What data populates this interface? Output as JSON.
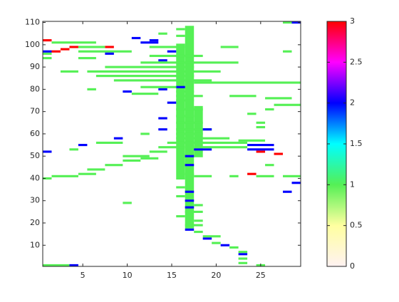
{
  "chart_data": {
    "type": "heatmap",
    "x_start": [
      17,
      16,
      18,
      1,
      4,
      25,
      23,
      23,
      23,
      23,
      22,
      21,
      20,
      19,
      19,
      18,
      17,
      17,
      18,
      16,
      17,
      17,
      18,
      10,
      17,
      16,
      17,
      28,
      16,
      29,
      1,
      2,
      18,
      22,
      25,
      28,
      24,
      5,
      17,
      6,
      8,
      17,
      26,
      10,
      17,
      12,
      10,
      27,
      1,
      13,
      25,
      4,
      18,
      24,
      14,
      18,
      24,
      5,
      7,
      15,
      23,
      9,
      16,
      12,
      16,
      16,
      19,
      14,
      25,
      16,
      25,
      14,
      16,
      24,
      16,
      26,
      27,
      15,
      16,
      16,
      26,
      22,
      11,
      16,
      10,
      14,
      16,
      6,
      12,
      18,
      9,
      7,
      3,
      6,
      8,
      14,
      12,
      1,
      5,
      13,
      1,
      1,
      2,
      5,
      8,
      15,
      28,
      3,
      4,
      8,
      5,
      13,
      21,
      12,
      1,
      2,
      11,
      13,
      16,
      14,
      16,
      29,
      28
    ],
    "x_end": [
      17,
      16,
      18,
      3,
      4,
      25,
      23,
      23,
      23,
      23,
      22,
      21,
      20,
      19,
      20,
      18,
      17,
      18,
      18,
      16,
      18,
      17,
      18,
      10,
      17,
      16,
      17,
      28,
      16,
      29,
      1,
      4,
      19,
      22,
      26,
      29,
      24,
      6,
      17,
      7,
      9,
      17,
      26,
      11,
      17,
      13,
      12,
      27,
      1,
      14,
      25,
      4,
      19,
      26,
      16,
      23,
      26,
      5,
      9,
      23,
      25,
      9,
      21,
      12,
      18,
      19,
      19,
      14,
      25,
      18,
      25,
      14,
      17,
      24,
      18,
      26,
      29,
      15,
      17,
      18,
      28,
      24,
      13,
      17,
      10,
      14,
      16,
      6,
      15,
      29,
      19,
      17,
      4,
      20,
      17,
      14,
      22,
      1,
      6,
      18,
      1,
      1,
      2,
      10,
      8,
      15,
      28,
      3,
      4,
      8,
      7,
      16,
      22,
      13,
      1,
      6,
      11,
      13,
      16,
      14,
      16,
      29,
      28
    ],
    "y_start": [
      18,
      40,
      50,
      1,
      1,
      1,
      2,
      4,
      6,
      7,
      9,
      10,
      11,
      13,
      14,
      16,
      17,
      19,
      21,
      23,
      25,
      27,
      28,
      29,
      30,
      32,
      34,
      34,
      36,
      38,
      40,
      41,
      41,
      41,
      41,
      41,
      42,
      42,
      42,
      44,
      46,
      46,
      46,
      48,
      50,
      49,
      50,
      51,
      52,
      52,
      52,
      53,
      53,
      53,
      54,
      54,
      55,
      55,
      56,
      56,
      57,
      58,
      58,
      60,
      60,
      62,
      62,
      62,
      63,
      65,
      65,
      67,
      68,
      69,
      71,
      71,
      73,
      74,
      75,
      77,
      76,
      77,
      78,
      79,
      79,
      80,
      81,
      80,
      81,
      83,
      84,
      86,
      88,
      88,
      90,
      93,
      92,
      94,
      94,
      95,
      96,
      97,
      97,
      97,
      96,
      97,
      97,
      98,
      99,
      99,
      99,
      99,
      99,
      101,
      102,
      101,
      103,
      102,
      104,
      105,
      107,
      110,
      110
    ],
    "y_end": [
      108,
      100,
      72,
      1,
      1,
      1,
      2,
      4,
      6,
      7,
      9,
      10,
      11,
      13,
      14,
      16,
      17,
      19,
      21,
      23,
      25,
      27,
      28,
      29,
      30,
      32,
      34,
      34,
      36,
      38,
      40,
      41,
      41,
      41,
      41,
      41,
      42,
      42,
      42,
      44,
      46,
      46,
      46,
      48,
      50,
      49,
      50,
      51,
      52,
      52,
      52,
      53,
      53,
      53,
      54,
      54,
      55,
      55,
      56,
      56,
      57,
      58,
      58,
      60,
      60,
      62,
      62,
      62,
      63,
      65,
      65,
      67,
      68,
      69,
      71,
      71,
      73,
      74,
      75,
      77,
      76,
      77,
      78,
      79,
      79,
      80,
      81,
      80,
      81,
      83,
      84,
      86,
      88,
      88,
      90,
      93,
      92,
      94,
      94,
      95,
      96,
      97,
      97,
      97,
      96,
      97,
      97,
      98,
      99,
      99,
      99,
      99,
      99,
      101,
      102,
      101,
      103,
      102,
      104,
      105,
      107,
      110,
      110
    ],
    "values": [
      1,
      1,
      1,
      1,
      2,
      1,
      1,
      1,
      2,
      1,
      1,
      2,
      1,
      2,
      1,
      1,
      2,
      1,
      1,
      1,
      1,
      2,
      1,
      1,
      2,
      1,
      2,
      2,
      1,
      2,
      1,
      1,
      1,
      1,
      1,
      1,
      3,
      1,
      1,
      1,
      1,
      2,
      1,
      1,
      2,
      1,
      1,
      3,
      2,
      1,
      3,
      1,
      2,
      2,
      1,
      1,
      2,
      2,
      1,
      1,
      1,
      2,
      1,
      1,
      1,
      1,
      2,
      2,
      1,
      1,
      1,
      2,
      1,
      1,
      1,
      1,
      1,
      2,
      1,
      1,
      1,
      1,
      1,
      1,
      2,
      2,
      2,
      1,
      1,
      1,
      1,
      1,
      1,
      1,
      1,
      2,
      1,
      1,
      1,
      1,
      1,
      2,
      3,
      1,
      2,
      2,
      1,
      3,
      3,
      3,
      1,
      1,
      1,
      2,
      3,
      1,
      2,
      2,
      1,
      1,
      1,
      2,
      1
    ],
    "xlim": [
      0.5,
      29.5
    ],
    "ylim": [
      0.5,
      110.5
    ],
    "xticks": [
      5,
      10,
      15,
      20,
      25
    ],
    "yticks": [
      10,
      20,
      30,
      40,
      50,
      60,
      70,
      80,
      90,
      100,
      110
    ],
    "clim": [
      0,
      3
    ],
    "cticks": [
      0,
      0.5,
      1,
      1.5,
      2,
      2.5,
      3
    ],
    "colormap": [
      "#fff2f2",
      "#ffffa0",
      "#55f055",
      "#00ffff",
      "#0000ff",
      "#ff00ff",
      "#ff0000"
    ]
  }
}
